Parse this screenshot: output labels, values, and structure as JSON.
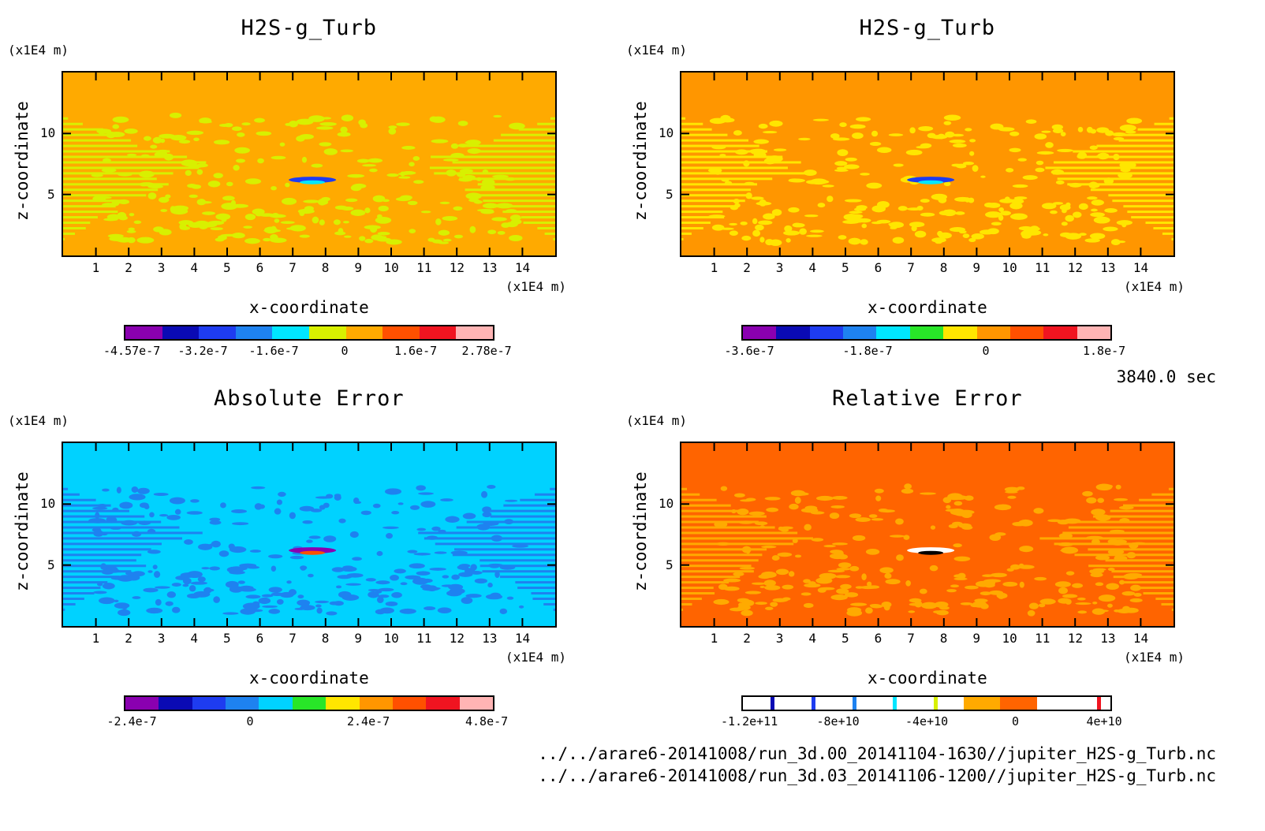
{
  "timestamp": "3840.0 sec",
  "files": [
    "../../arare6-20141008/run_3d.00_20141104-1630//jupiter_H2S-g_Turb.nc",
    "../../arare6-20141008/run_3d.03_20141106-1200//jupiter_H2S-g_Turb.nc"
  ],
  "chart_data": [
    {
      "type": "heatmap",
      "title": "H2S-g_Turb",
      "xlabel": "x-coordinate",
      "ylabel": "z-coordinate",
      "x_unit": "(x1E4 m)",
      "y_unit": "(x1E4 m)",
      "xlim": [
        0,
        15
      ],
      "ylim": [
        0,
        15
      ],
      "x_ticks": [
        "1",
        "2",
        "3",
        "4",
        "5",
        "6",
        "7",
        "8",
        "9",
        "10",
        "11",
        "12",
        "13",
        "14"
      ],
      "y_ticks": [
        "5",
        "10"
      ],
      "background_color": "#ffaa00",
      "pattern_color": "#d8f000",
      "colorbar": {
        "colors": [
          "#8a00b0",
          "#0a0ab4",
          "#1e3cf0",
          "#1e82f0",
          "#00e6ff",
          "#d8f000",
          "#ffaa00",
          "#ff5000",
          "#f01420",
          "#ffb4b4"
        ],
        "labels": [
          "-4.57e-7",
          "-3.2e-7",
          "-1.6e-7",
          "0",
          "1.6e-7",
          "2.78e-7"
        ]
      }
    },
    {
      "type": "heatmap",
      "title": "H2S-g_Turb",
      "xlabel": "x-coordinate",
      "ylabel": "z-coordinate",
      "x_unit": "(x1E4 m)",
      "y_unit": "(x1E4 m)",
      "xlim": [
        0,
        15
      ],
      "ylim": [
        0,
        15
      ],
      "x_ticks": [
        "1",
        "2",
        "3",
        "4",
        "5",
        "6",
        "7",
        "8",
        "9",
        "10",
        "11",
        "12",
        "13",
        "14"
      ],
      "y_ticks": [
        "5",
        "10"
      ],
      "background_color": "#ff9600",
      "pattern_color": "#ffe600",
      "colorbar": {
        "colors": [
          "#8a00b0",
          "#0a0ab4",
          "#1e3cf0",
          "#1e82f0",
          "#00e6ff",
          "#28e628",
          "#ffe600",
          "#ff9600",
          "#ff5000",
          "#f01420",
          "#ffb4b4"
        ],
        "labels": [
          "-3.6e-7",
          "-1.8e-7",
          "0",
          "1.8e-7"
        ]
      }
    },
    {
      "type": "heatmap",
      "title": "Absolute Error",
      "xlabel": "x-coordinate",
      "ylabel": "z-coordinate",
      "x_unit": "(x1E4 m)",
      "y_unit": "(x1E4 m)",
      "xlim": [
        0,
        15
      ],
      "ylim": [
        0,
        15
      ],
      "x_ticks": [
        "1",
        "2",
        "3",
        "4",
        "5",
        "6",
        "7",
        "8",
        "9",
        "10",
        "11",
        "12",
        "13",
        "14"
      ],
      "y_ticks": [
        "5",
        "10"
      ],
      "background_color": "#00d2ff",
      "pattern_color": "#1e82f0",
      "colorbar": {
        "colors": [
          "#8a00b0",
          "#0a0ab4",
          "#1e3cf0",
          "#1e82f0",
          "#00d2ff",
          "#28e628",
          "#ffe600",
          "#ff9600",
          "#ff5000",
          "#f01420",
          "#ffb4b4"
        ],
        "labels": [
          "-2.4e-7",
          "0",
          "2.4e-7",
          "4.8e-7"
        ]
      }
    },
    {
      "type": "heatmap",
      "title": "Relative Error",
      "xlabel": "x-coordinate",
      "ylabel": "z-coordinate",
      "x_unit": "(x1E4 m)",
      "y_unit": "(x1E4 m)",
      "xlim": [
        0,
        15
      ],
      "ylim": [
        0,
        15
      ],
      "x_ticks": [
        "1",
        "2",
        "3",
        "4",
        "5",
        "6",
        "7",
        "8",
        "9",
        "10",
        "11",
        "12",
        "13",
        "14"
      ],
      "y_ticks": [
        "5",
        "10"
      ],
      "background_color": "#ff6400",
      "pattern_color": "#ffaa00",
      "colorbar": {
        "colors": [
          "#ffffff",
          "#ffffff",
          "#ffffff",
          "#ffffff",
          "#ffffff",
          "#ffffff",
          "#ffaa00",
          "#ff6400",
          "#ffffff",
          "#ffffff"
        ],
        "labels": [
          "-1.2e+11",
          "-8e+10",
          "-4e+10",
          "0",
          "4e+10"
        ]
      }
    }
  ]
}
